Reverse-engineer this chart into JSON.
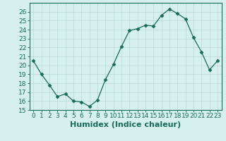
{
  "title": "",
  "xlabel": "Humidex (Indice chaleur)",
  "ylabel": "",
  "x_values": [
    0,
    1,
    2,
    3,
    4,
    5,
    6,
    7,
    8,
    9,
    10,
    11,
    12,
    13,
    14,
    15,
    16,
    17,
    18,
    19,
    20,
    21,
    22,
    23
  ],
  "y_values": [
    20.5,
    19.0,
    17.8,
    16.5,
    16.8,
    16.0,
    15.9,
    15.4,
    16.1,
    18.4,
    20.1,
    22.1,
    23.9,
    24.1,
    24.5,
    24.4,
    25.6,
    26.3,
    25.8,
    25.2,
    23.1,
    21.5,
    19.5,
    20.5
  ],
  "line_color": "#1a6b5a",
  "marker": "D",
  "marker_size": 2.5,
  "bg_color": "#d6f0ee",
  "grid_color": "#b8d8d4",
  "ylim": [
    15,
    27
  ],
  "yticks": [
    15,
    16,
    17,
    18,
    19,
    20,
    21,
    22,
    23,
    24,
    25,
    26
  ],
  "xticks": [
    0,
    1,
    2,
    3,
    4,
    5,
    6,
    7,
    8,
    9,
    10,
    11,
    12,
    13,
    14,
    15,
    16,
    17,
    18,
    19,
    20,
    21,
    22,
    23
  ],
  "tick_fontsize": 6.5,
  "xlabel_fontsize": 8,
  "linewidth": 0.9
}
